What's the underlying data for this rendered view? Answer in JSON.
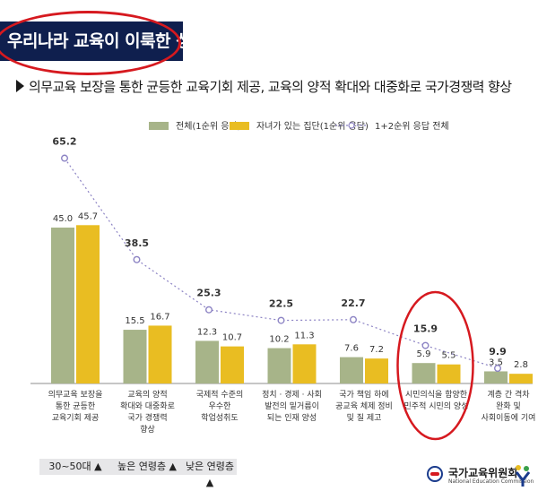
{
  "page": {
    "title": "우리나라 교육이 이룩한 성과",
    "subtitle": "의무교육 보장을 통한 균등한 교육기회 제공, 교육의 양적 확대와 대중화로 국가경쟁력 향상"
  },
  "badges": [
    "30~50대 ▲",
    "높은 연령층 ▲",
    "낮은 연령층 ▲"
  ],
  "footer": {
    "org_name": "국가교육위원회",
    "org_name_en": "National Education Commission"
  },
  "colors": {
    "series1": "#a7b489",
    "series2": "#e9bd22",
    "line": "#8c83c4",
    "highlight": "#d6191f",
    "title_bg": "#0f1f4e"
  },
  "chart_data": {
    "type": "bar",
    "categories": [
      [
        "의무교육 보장을",
        "통한 균등한",
        "교육기회 제공"
      ],
      [
        "교육의 양적",
        "확대와 대중화로",
        "국가 경쟁력",
        "향상"
      ],
      [
        "국제적 수준의",
        "우수한",
        "학업성취도"
      ],
      [
        "정치 · 경제 · 사회",
        "발전의 밑거름이",
        "되는 인재 양성"
      ],
      [
        "국가 책임 하에",
        "공교육 체제 정비",
        "및 질 제고"
      ],
      [
        "시민의식을 함양한",
        "민주적 시민의 양성"
      ],
      [
        "계층 간 격차",
        "완화 및",
        "사회이동에 기여"
      ]
    ],
    "series": [
      {
        "name": "전체(1순위 응답)",
        "type": "bar",
        "values": [
          45.0,
          15.5,
          12.3,
          10.2,
          7.6,
          5.9,
          3.5
        ],
        "labels": [
          "45.0",
          "15.5",
          "12.3",
          "10.2",
          "7.6",
          "5.9",
          "3.5"
        ]
      },
      {
        "name": "자녀가 있는 집단(1순위 응답)",
        "type": "bar",
        "values": [
          45.7,
          16.7,
          10.7,
          11.3,
          7.2,
          5.5,
          2.8
        ],
        "labels": [
          "45.7",
          "16.7",
          "10.7",
          "11.3",
          "7.2",
          "5.5",
          "2.8"
        ]
      },
      {
        "name": "1+2순위 응답 전체",
        "type": "line",
        "values": [
          65.2,
          38.5,
          25.3,
          22.5,
          22.7,
          15.9,
          9.9
        ],
        "labels": [
          "65.2",
          "38.5",
          "25.3",
          "22.5",
          "22.7",
          "15.9",
          "9.9"
        ]
      }
    ],
    "highlighted_category_index": 5,
    "legend_position": "top-right",
    "grid": false
  }
}
